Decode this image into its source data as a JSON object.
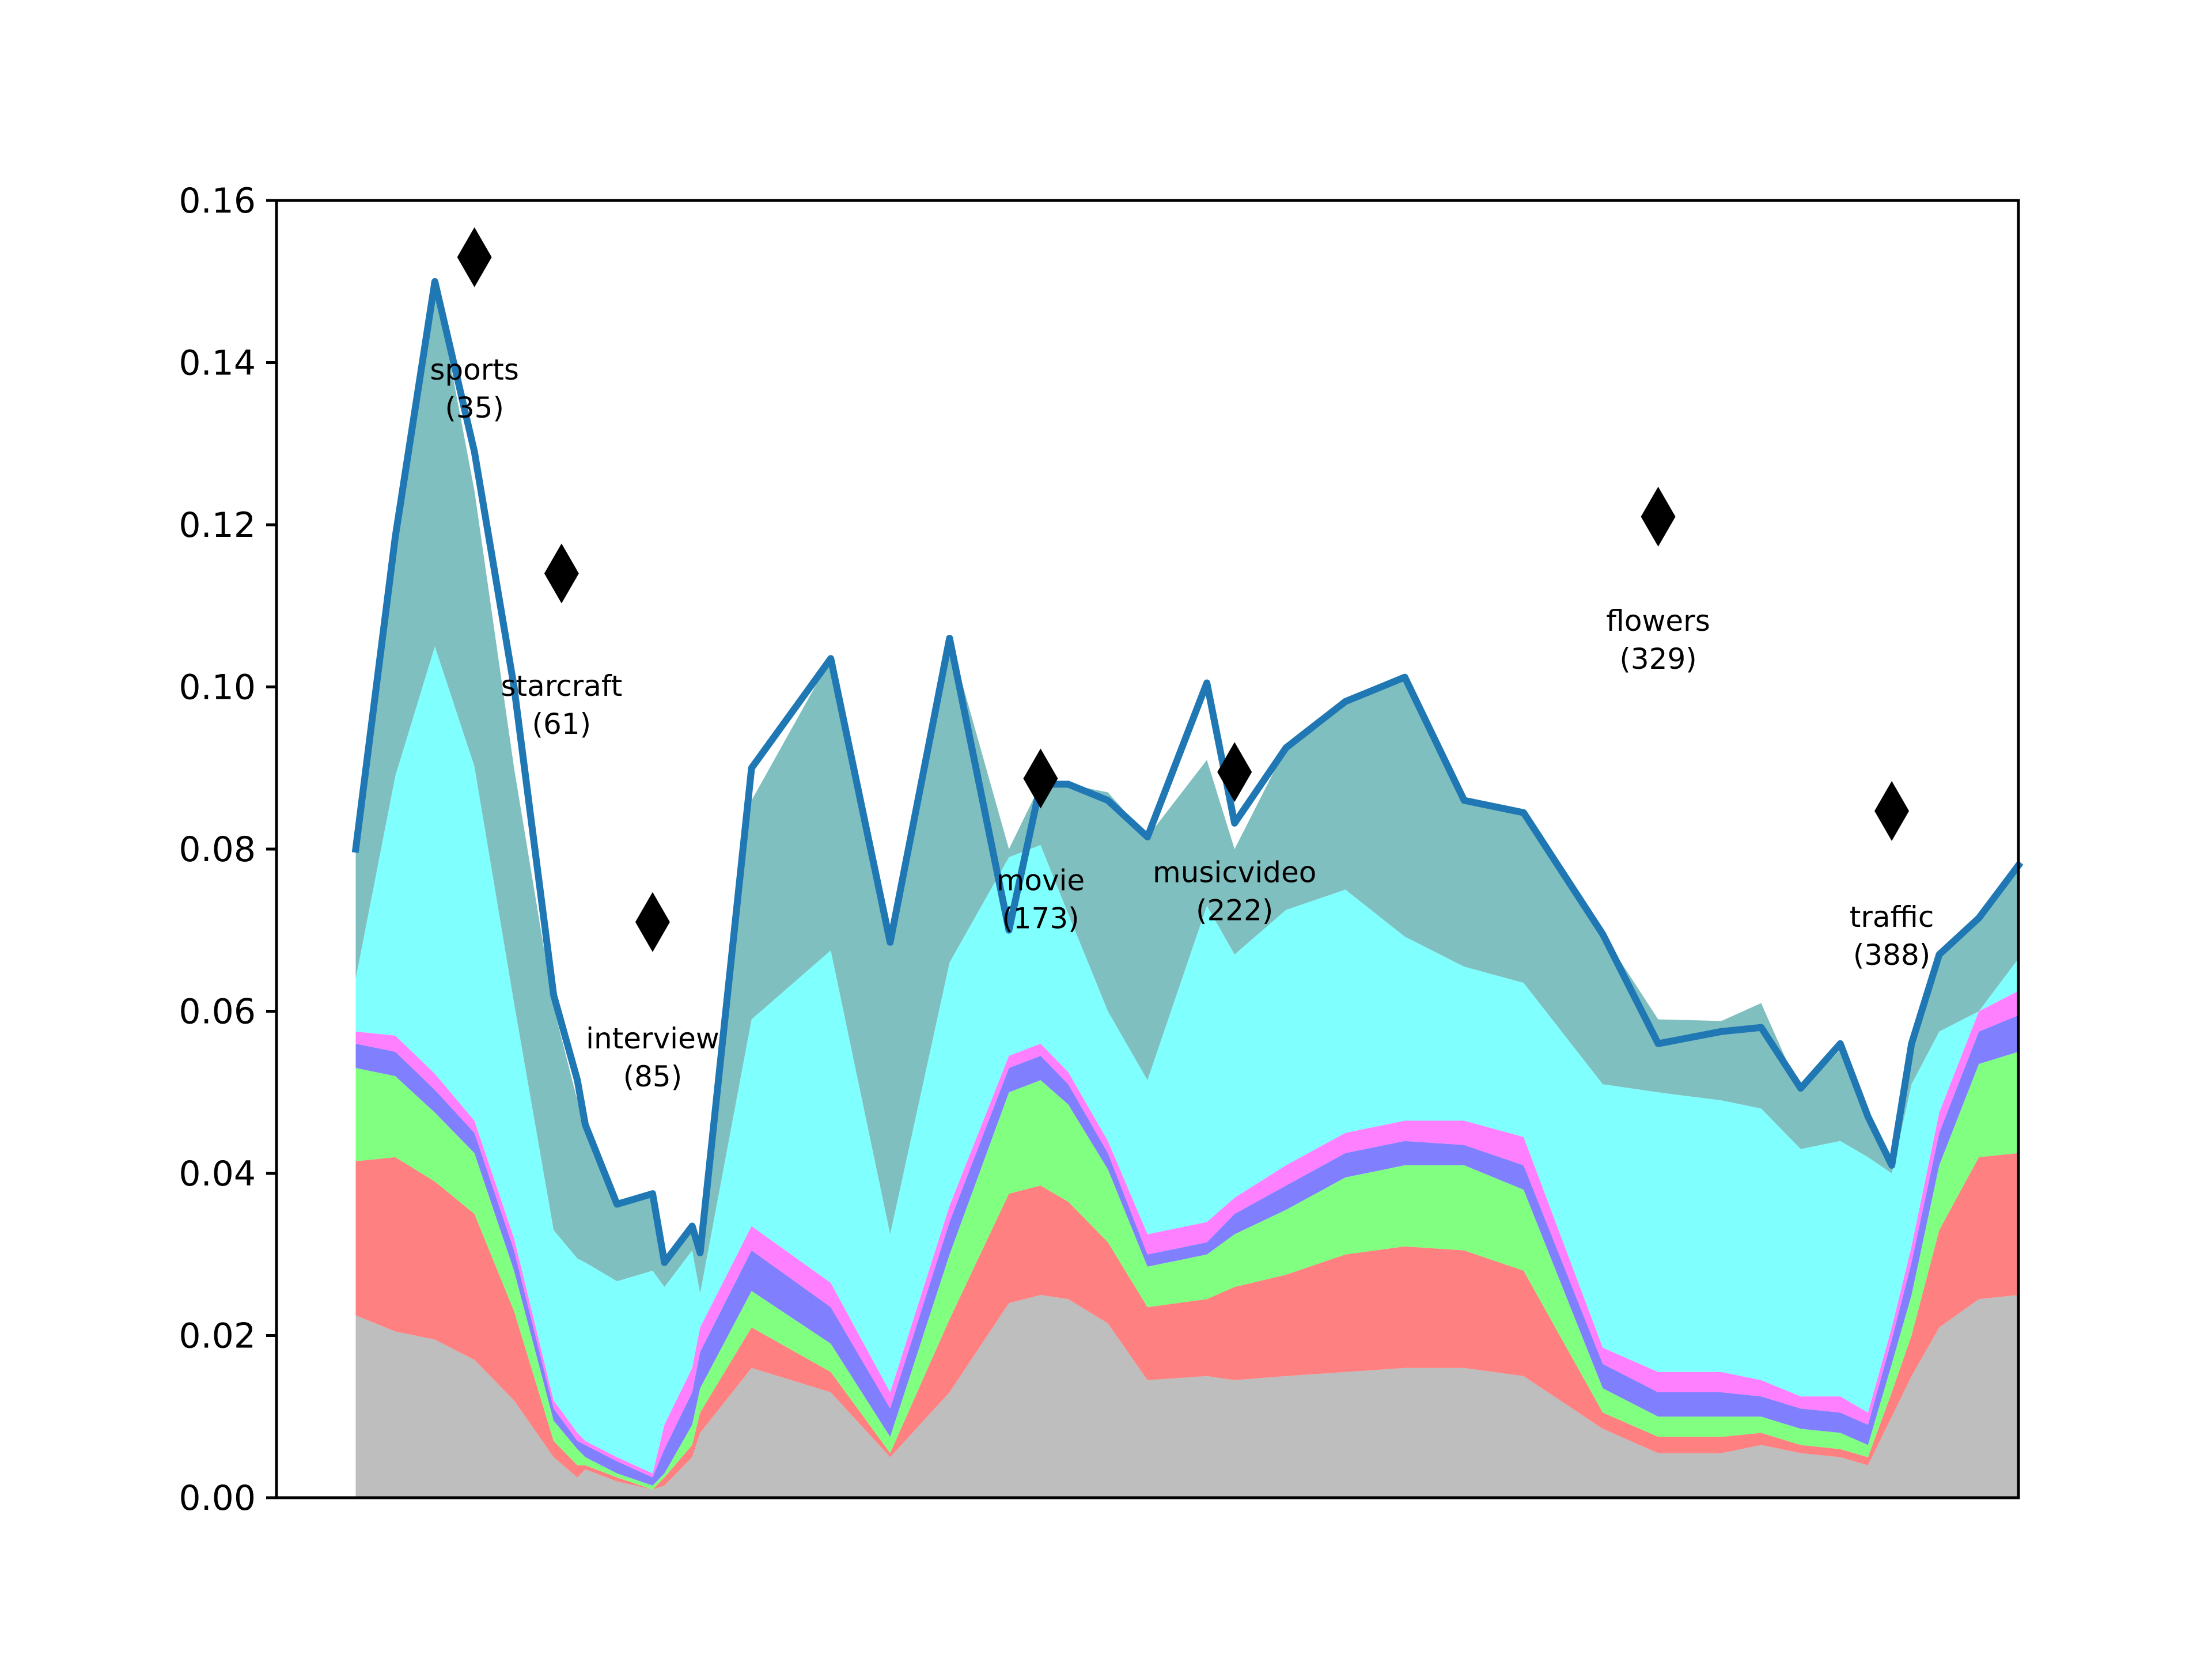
{
  "chart_data": {
    "type": "area",
    "title": "",
    "xlabel": "",
    "ylabel": "",
    "ylim": [
      0,
      0.16
    ],
    "xlim": [
      -20,
      420
    ],
    "x_ticks_shown": false,
    "grid": false,
    "legend": "none",
    "y_ticks": [
      "0.00",
      "0.02",
      "0.04",
      "0.06",
      "0.08",
      "0.10",
      "0.12",
      "0.14",
      "0.16"
    ],
    "x": [
      0,
      10,
      20,
      30,
      40,
      50,
      56,
      58,
      66,
      75,
      78,
      85,
      87,
      100,
      120,
      135,
      150,
      165,
      173,
      180,
      190,
      200,
      215,
      222,
      235,
      250,
      265,
      280,
      295,
      315,
      329,
      345,
      355,
      365,
      375,
      382,
      388,
      393,
      400,
      410,
      420
    ],
    "series": [
      {
        "color": "#bebebe",
        "values": [
          0.0225,
          0.0205,
          0.0195,
          0.017,
          0.012,
          0.005,
          0.0025,
          0.0035,
          0.002,
          0.001,
          0.0015,
          0.005,
          0.008,
          0.016,
          0.013,
          0.005,
          0.013,
          0.024,
          0.025,
          0.0245,
          0.0215,
          0.0145,
          0.015,
          0.0145,
          0.015,
          0.0155,
          0.016,
          0.016,
          0.015,
          0.0085,
          0.0055,
          0.0055,
          0.0065,
          0.0055,
          0.005,
          0.004,
          0.01,
          0.015,
          0.021,
          0.0245,
          0.025
        ]
      },
      {
        "color": "#ff8080",
        "values": [
          0.019,
          0.0215,
          0.0195,
          0.018,
          0.011,
          0.002,
          0.0015,
          0.0005,
          0.0005,
          0.0,
          0.001,
          0.0015,
          0.0025,
          0.005,
          0.0025,
          0.0005,
          0.009,
          0.0135,
          0.0135,
          0.012,
          0.01,
          0.009,
          0.0095,
          0.0115,
          0.0125,
          0.0145,
          0.015,
          0.0145,
          0.013,
          0.002,
          0.002,
          0.002,
          0.0015,
          0.001,
          0.001,
          0.001,
          0.003,
          0.005,
          0.012,
          0.0175,
          0.0175
        ]
      },
      {
        "color": "#80ff80",
        "values": [
          0.0115,
          0.01,
          0.0085,
          0.0075,
          0.005,
          0.0025,
          0.002,
          0.001,
          0.0005,
          0.0005,
          0.0005,
          0.0025,
          0.003,
          0.0045,
          0.0035,
          0.002,
          0.008,
          0.0125,
          0.013,
          0.012,
          0.009,
          0.005,
          0.0055,
          0.0065,
          0.008,
          0.0095,
          0.01,
          0.0105,
          0.01,
          0.003,
          0.0025,
          0.0025,
          0.002,
          0.002,
          0.002,
          0.0015,
          0.0035,
          0.005,
          0.008,
          0.0115,
          0.0125
        ]
      },
      {
        "color": "#8080ff",
        "values": [
          0.003,
          0.003,
          0.0028,
          0.0025,
          0.0025,
          0.0015,
          0.001,
          0.0015,
          0.0015,
          0.001,
          0.003,
          0.004,
          0.0045,
          0.005,
          0.0045,
          0.0035,
          0.004,
          0.003,
          0.003,
          0.0025,
          0.002,
          0.0015,
          0.0015,
          0.0025,
          0.003,
          0.003,
          0.003,
          0.0025,
          0.003,
          0.003,
          0.003,
          0.003,
          0.0025,
          0.0025,
          0.0025,
          0.0025,
          0.003,
          0.004,
          0.004,
          0.004,
          0.0045
        ]
      },
      {
        "color": "#ff80ff",
        "values": [
          0.0015,
          0.002,
          0.002,
          0.0015,
          0.0015,
          0.001,
          0.001,
          0.0005,
          0.0005,
          0.0005,
          0.003,
          0.003,
          0.003,
          0.003,
          0.003,
          0.002,
          0.002,
          0.0015,
          0.0015,
          0.0015,
          0.0015,
          0.0025,
          0.0025,
          0.002,
          0.0025,
          0.0025,
          0.0025,
          0.003,
          0.0035,
          0.002,
          0.0025,
          0.0025,
          0.002,
          0.0015,
          0.002,
          0.0015,
          0.0015,
          0.002,
          0.0025,
          0.0025,
          0.003
        ]
      },
      {
        "color": "#80ffff",
        "values": [
          0.0065,
          0.032,
          0.0527,
          0.0437,
          0.029,
          0.021,
          0.0215,
          0.022,
          0.0217,
          0.025,
          0.017,
          0.0145,
          0.0042,
          0.0255,
          0.041,
          0.0195,
          0.03,
          0.0245,
          0.0245,
          0.0195,
          0.016,
          0.019,
          0.039,
          0.03,
          0.0315,
          0.03,
          0.0227,
          0.019,
          0.019,
          0.0325,
          0.0345,
          0.0335,
          0.0335,
          0.0305,
          0.0315,
          0.0315,
          0.019,
          0.02,
          0.01,
          0.0,
          0.004
        ]
      },
      {
        "color": "#80bfbf",
        "values": [
          0.016,
          0.0295,
          0.045,
          0.034,
          0.029,
          0.0275,
          0.0195,
          0.017,
          0.0095,
          0.0095,
          0.003,
          0.003,
          0.005,
          0.027,
          0.036,
          0.036,
          0.04,
          0.001,
          0.0075,
          0.016,
          0.027,
          0.03,
          0.018,
          0.013,
          0.02,
          0.0232,
          0.0323,
          0.0205,
          0.021,
          0.0185,
          0.009,
          0.0098,
          0.013,
          0.007,
          0.0113,
          0.0045,
          0.001,
          0.006,
          0.0095,
          0.0115,
          0.0115
        ]
      }
    ],
    "total_line": {
      "color": "#1f77b4",
      "values": [
        0.08,
        0.1185,
        0.15,
        0.129,
        0.1,
        0.062,
        0.0515,
        0.046,
        0.0362,
        0.0375,
        0.029,
        0.0335,
        0.0302,
        0.09,
        0.1035,
        0.0685,
        0.106,
        0.07,
        0.088,
        0.088,
        0.086,
        0.0815,
        0.1005,
        0.0832,
        0.0925,
        0.0982,
        0.1012,
        0.086,
        0.0845,
        0.0695,
        0.056,
        0.0575,
        0.058,
        0.0505,
        0.056,
        0.047,
        0.041,
        0.056,
        0.067,
        0.0715,
        0.078
      ]
    },
    "markers": [
      {
        "x": 30,
        "y": 0.153,
        "label": "sports",
        "count": "(35)",
        "label_y": 0.1345
      },
      {
        "x": 52,
        "y": 0.114,
        "label": "starcraft",
        "count": "(61)",
        "label_y": 0.0955
      },
      {
        "x": 75,
        "y": 0.071,
        "label": "interview",
        "count": "(85)",
        "label_y": 0.052
      },
      {
        "x": 173,
        "y": 0.0887,
        "label": "movie",
        "count": "(173)",
        "label_y": 0.0715
      },
      {
        "x": 222,
        "y": 0.0895,
        "label": "musicvideo",
        "count": "(222)",
        "label_y": 0.0725
      },
      {
        "x": 329,
        "y": 0.121,
        "label": "flowers",
        "count": "(329)",
        "label_y": 0.1035
      },
      {
        "x": 388,
        "y": 0.0847,
        "label": "traffic",
        "count": "(388)",
        "label_y": 0.067
      }
    ]
  }
}
